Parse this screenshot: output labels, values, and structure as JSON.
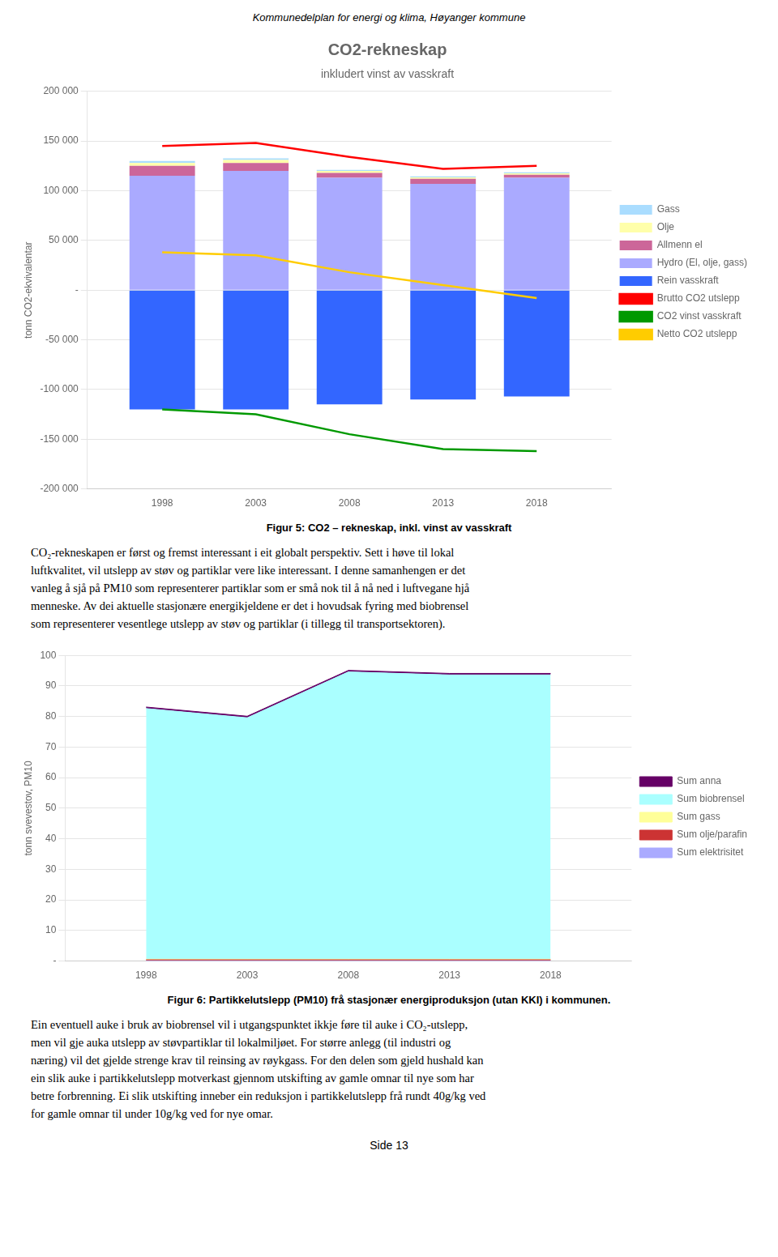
{
  "title": "Kommunedelplan for energi og klima, Høyanger kommune",
  "annotations": [
    "Side 13"
  ],
  "chart_data": [
    {
      "type": "bar",
      "title": "CO2-rekneskap",
      "subtitle": "inkludert vinst av vasskraft",
      "y_label": "tonn CO2-ekvivalentar",
      "x": [
        1998,
        2003,
        2008,
        2013,
        2018
      ],
      "xlim": [
        1994,
        2022
      ],
      "xticks": [
        1998,
        2003,
        2008,
        2013,
        2018
      ],
      "ylim": [
        -200000,
        200000
      ],
      "yticks": [
        {
          "value": -200000,
          "label": "-200 000"
        },
        {
          "value": -150000,
          "label": "-150 000"
        },
        {
          "value": -100000,
          "label": "-100 000"
        },
        {
          "value": -50000,
          "label": "-50 000"
        },
        {
          "value": 0,
          "label": "-"
        },
        {
          "value": 50000,
          "label": "50 000"
        },
        {
          "value": 100000,
          "label": "100 000"
        },
        {
          "value": 150000,
          "label": "150 000"
        },
        {
          "value": 200000,
          "label": "200 000"
        }
      ],
      "stacked": true,
      "grid": true,
      "legend": "right",
      "series": [
        {
          "name": "Rein vasskraft",
          "color": "#3366ff",
          "values": [
            -120000,
            -120000,
            -115000,
            -110000,
            -107000
          ]
        },
        {
          "name": "Hydro (El, olje, gass)",
          "color": "#aaaaff",
          "values": [
            115000,
            120000,
            113000,
            107000,
            113000
          ]
        },
        {
          "name": "Allmenn el",
          "color": "#cc6699",
          "values": [
            10000,
            8000,
            5000,
            5000,
            3000
          ]
        },
        {
          "name": "Olje",
          "color": "#ffffaa",
          "values": [
            3000,
            3000,
            2000,
            1500,
            1500
          ]
        },
        {
          "name": "Gass",
          "color": "#aaddff",
          "values": [
            2000,
            1500,
            1000,
            1000,
            1000
          ]
        },
        {
          "name": "Brutto CO2 utslepp",
          "type": "line",
          "color": "#ff0000",
          "values": [
            145000,
            148000,
            134000,
            122000,
            125000
          ]
        },
        {
          "name": "CO2 vinst vasskraft",
          "type": "line",
          "color": "#009900",
          "values": [
            -120000,
            -125000,
            -145000,
            -160000,
            -162000
          ]
        },
        {
          "name": "Netto CO2 utslepp",
          "type": "line",
          "color": "#ffcc00",
          "values": [
            38000,
            35000,
            18000,
            5000,
            -8000
          ]
        }
      ],
      "annotations": [
        "Figur 5: CO2 – rekneskap, inkl. vinst av vasskraft",
        "CO₂-rekneskapen er først og fremst interessant i eit globalt perspektiv. Sett i høve til lokal",
        "luftkvalitet, vil utslepp av støv og partiklar vere like interessant. I denne samanhengen er det",
        "vanleg å sjå på PM10 som representerer partiklar som er små nok til å nå ned i luftvegane hjå",
        "menneske. Av dei aktuelle stasjonære energikjeldene er det i hovudsak fyring med biobrensel",
        "som representerer vesentlege utslepp av støv og partiklar (i tillegg til transportsektoren)."
      ]
    },
    {
      "type": "area",
      "y_label": "tonn svevestov, PM10",
      "x": [
        1998,
        2003,
        2008,
        2013,
        2018
      ],
      "xlim": [
        1994,
        2022
      ],
      "xticks": [
        1998,
        2003,
        2008,
        2013,
        2018
      ],
      "ylim": [
        0,
        100
      ],
      "yticks": [
        {
          "value": 0,
          "label": "-"
        },
        10,
        20,
        30,
        40,
        50,
        60,
        70,
        80,
        90,
        100
      ],
      "stacked": true,
      "grid": true,
      "legend": "right",
      "series": [
        {
          "name": "Sum elektrisitet",
          "color": "#aaaaff",
          "values": [
            0.1,
            0.1,
            0.1,
            0.1,
            0.1
          ]
        },
        {
          "name": "Sum olje/parafin",
          "color": "#cc3333",
          "values": [
            0.3,
            0.3,
            0.3,
            0.3,
            0.3
          ]
        },
        {
          "name": "Sum gass",
          "color": "#ffff99",
          "values": [
            0.2,
            0.2,
            0.2,
            0.2,
            0.2
          ]
        },
        {
          "name": "Sum biobrensel",
          "color": "#aaffff",
          "values": [
            82,
            79,
            94,
            93,
            93
          ]
        },
        {
          "name": "Sum anna",
          "color": "#660066",
          "values": [
            0.5,
            0.5,
            0.5,
            0.5,
            0.5
          ]
        }
      ],
      "annotations": [
        "Figur 6: Partikkelutslepp (PM10) frå stasjonær energiproduksjon (utan KKI) i kommunen.",
        "Ein eventuell auke i bruk av biobrensel vil i utgangspunktet ikkje føre til auke i CO₂-utslepp,",
        "men vil gje auka utslepp av støvpartiklar til lokalmiljøet. For større anlegg (til industri og",
        "næring) vil det gjelde strenge krav til reinsing av røykgass. For den delen som gjeld hushald kan",
        "ein slik auke i partikkelutslepp motverkast gjennom utskifting av gamle omnar til nye som har",
        "betre forbrenning. Ei slik utskifting inneber ein reduksjon i partikkelutslepp frå rundt 40g/kg ved",
        "for gamle omnar til under 10g/kg ved for nye omar."
      ]
    }
  ]
}
